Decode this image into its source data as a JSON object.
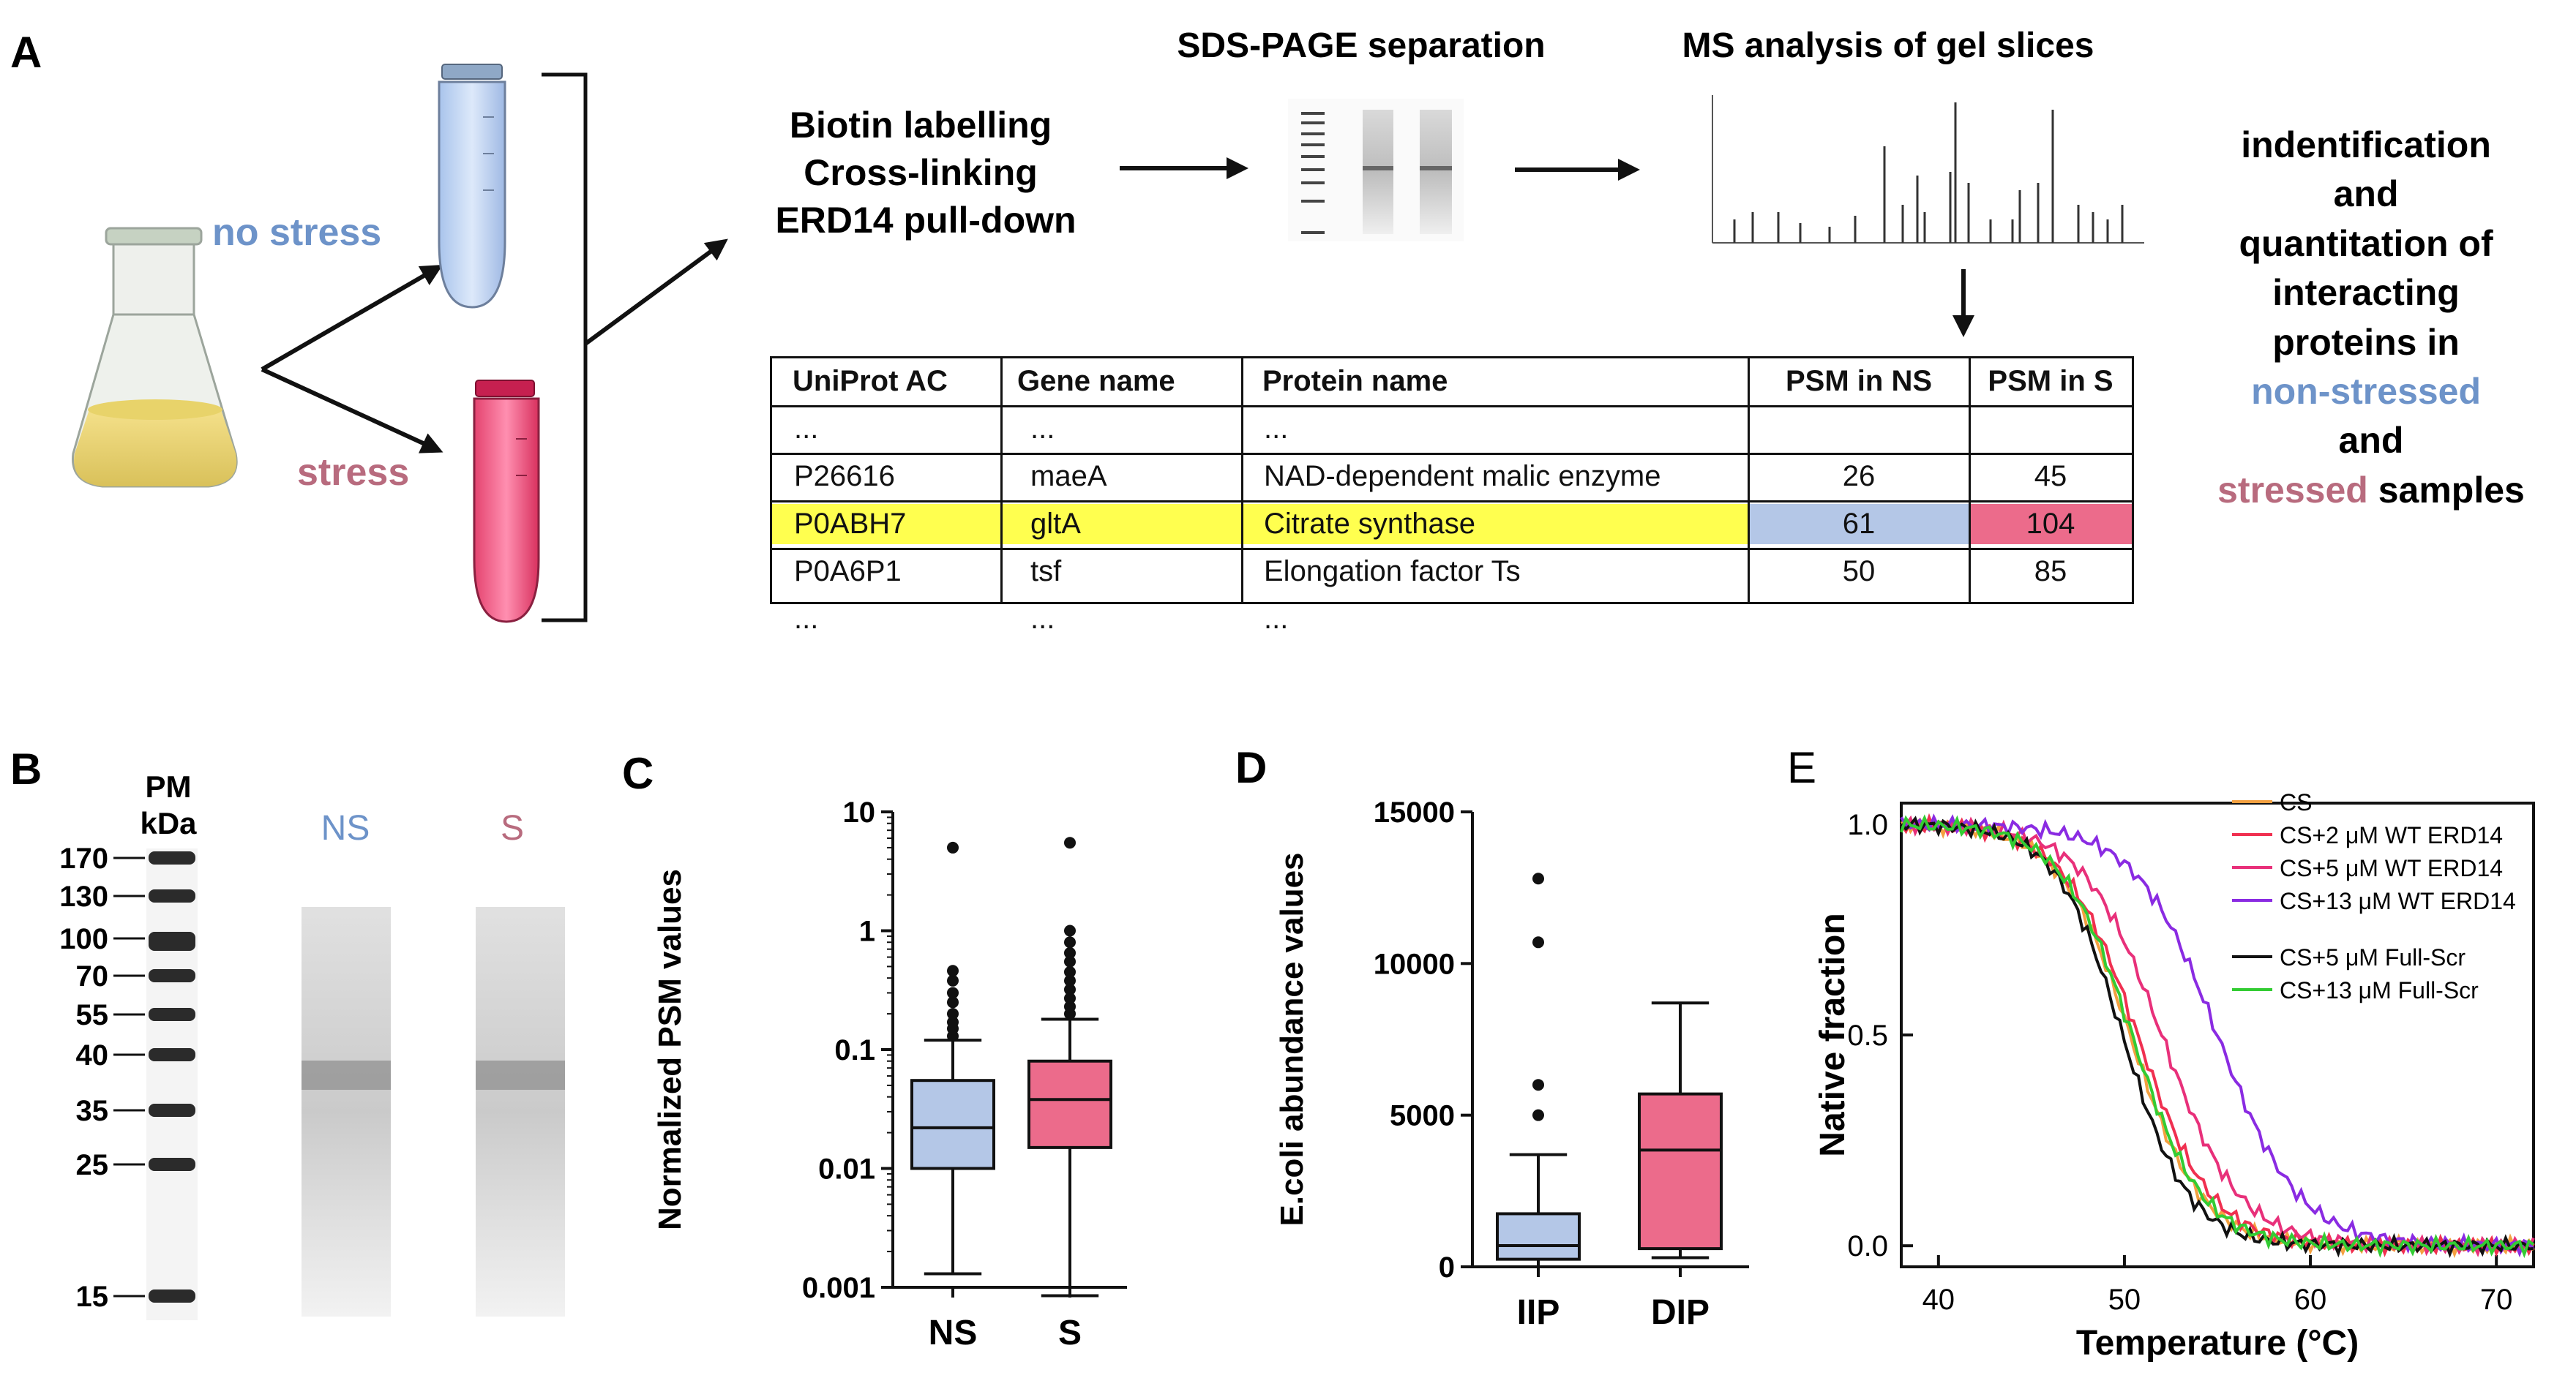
{
  "panel_a": {
    "label": "A",
    "no_stress": "no stress",
    "stress": "stress",
    "steps": [
      "Biotin labelling",
      "Cross-linking",
      "ERD14 pull-down"
    ],
    "sds_title": "SDS-PAGE separation",
    "ms_title": "MS analysis of gel slices",
    "summary": [
      "indentification",
      "and",
      "quantitation of",
      "interacting",
      "proteins in"
    ],
    "summary_ns": "non-stressed",
    "summary_and": "and",
    "summary_s": "stressed",
    "summary_samples": "samples",
    "colors": {
      "ns": "#6d93c9",
      "s": "#b86b7e",
      "highlight": "#ffff4f",
      "ns_cell": "#b4c7e7",
      "s_cell": "#ec6b8b"
    },
    "table": {
      "headers": [
        "UniProt AC",
        "Gene name",
        "Protein name",
        "PSM in NS",
        "PSM in S"
      ],
      "rows": [
        [
          "...",
          "...",
          "...",
          "",
          ""
        ],
        [
          "P26616",
          "maeA",
          "NAD-dependent malic enzyme",
          "26",
          "45"
        ],
        [
          "P0ABH7",
          "gltA",
          "Citrate synthase",
          "61",
          "104"
        ],
        [
          "P0A6P1",
          "tsf",
          "Elongation factor Ts",
          "50",
          "85"
        ],
        [
          "...",
          "...",
          "...",
          "",
          ""
        ]
      ]
    }
  },
  "panel_b": {
    "label": "B",
    "pm": "PM",
    "kda": "kDa",
    "ns": "NS",
    "s": "S",
    "markers": [
      "170",
      "130",
      "100",
      "70",
      "55",
      "40",
      "35",
      "25",
      "15"
    ]
  },
  "chart_data": [
    {
      "type": "box",
      "panel": "C",
      "ylabel": "Normalized PSM values",
      "yscale": "log",
      "ylim": [
        0.001,
        10
      ],
      "ticks": [
        "0.001",
        "0.01",
        "0.1",
        "1",
        "10"
      ],
      "categories": [
        "NS",
        "S"
      ],
      "series": [
        {
          "name": "NS",
          "whisker_low": 0.0013,
          "q1": 0.01,
          "median": 0.022,
          "q3": 0.055,
          "whisker_high": 0.12,
          "outliers": [
            0.13,
            0.15,
            0.17,
            0.2,
            0.25,
            0.3,
            0.38,
            0.46,
            5
          ]
        },
        {
          "name": "S",
          "whisker_low": 0.00085,
          "q1": 0.015,
          "median": 0.038,
          "q3": 0.08,
          "whisker_high": 0.18,
          "outliers": [
            0.2,
            0.23,
            0.27,
            0.32,
            0.38,
            0.45,
            0.55,
            0.65,
            0.8,
            1.0,
            5.5
          ]
        }
      ]
    },
    {
      "type": "box",
      "panel": "D",
      "ylabel": "E.coli abundance values",
      "ylim": [
        0,
        15000
      ],
      "ticks": [
        "0",
        "5000",
        "10000",
        "15000"
      ],
      "categories": [
        "IIP",
        "DIP"
      ],
      "series": [
        {
          "name": "IIP",
          "whisker_low": 0,
          "q1": 250,
          "median": 700,
          "q3": 1750,
          "whisker_high": 3700,
          "outliers": [
            5000,
            6000,
            10700,
            12800
          ]
        },
        {
          "name": "DIP",
          "whisker_low": 300,
          "q1": 600,
          "median": 3850,
          "q3": 5700,
          "whisker_high": 8700,
          "outliers": []
        }
      ]
    },
    {
      "type": "line",
      "panel": "E",
      "xlabel": "Temperature (°C)",
      "ylabel": "Native fraction",
      "xlim": [
        38,
        72
      ],
      "ylim": [
        -0.05,
        1.05
      ],
      "xticks": [
        "40",
        "50",
        "60",
        "70"
      ],
      "yticks": [
        "0.0",
        "0.5",
        "1.0"
      ],
      "series": [
        {
          "name": "CS",
          "color": "#f4a040",
          "tm": 50.3,
          "width": 1.9
        },
        {
          "name": "CS+2 μM WT ERD14",
          "color": "#f03050",
          "tm": 50.7,
          "width": 2.0
        },
        {
          "name": "CS+5 μM WT ERD14",
          "color": "#e8307a",
          "tm": 52.0,
          "width": 2.1
        },
        {
          "name": "CS+13 μM WT ERD14",
          "color": "#8a2be2",
          "tm": 55.0,
          "width": 2.2
        },
        {
          "name": "CS+5 μM Full-Scr",
          "color": "#111111",
          "tm": 49.9,
          "width": 1.8
        },
        {
          "name": "CS+13 μM Full-Scr",
          "color": "#33cc33",
          "tm": 50.4,
          "width": 1.9
        }
      ]
    }
  ]
}
